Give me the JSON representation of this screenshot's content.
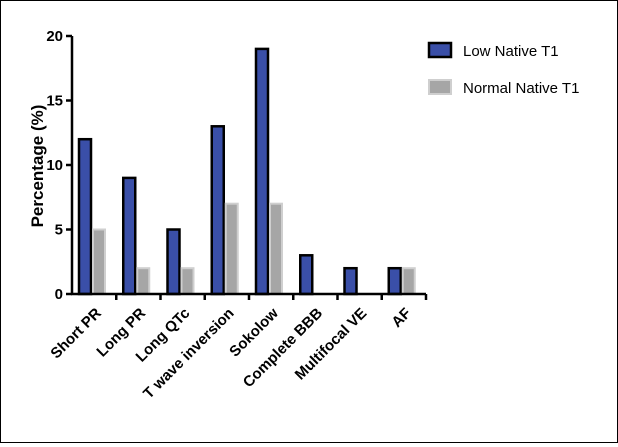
{
  "chart_data": {
    "type": "bar",
    "title": "",
    "xlabel": "",
    "ylabel": "Percentage (%)",
    "ylim": [
      0,
      20
    ],
    "yticks": [
      "0",
      "5",
      "10",
      "15",
      "20"
    ],
    "categories": [
      "Short PR",
      "Long PR",
      "Long QTc",
      "T wave inversion",
      "Sokolow",
      "Complete BBB",
      "Multifocal VE",
      "AF"
    ],
    "series": [
      {
        "name": "Low Native T1",
        "color": "#3A4FA8",
        "values": [
          12,
          9,
          5,
          13,
          19,
          3,
          2,
          2
        ]
      },
      {
        "name": "Normal Native T1",
        "color": "#A6A6A6",
        "values": [
          5,
          2,
          2,
          7,
          7,
          0,
          0,
          2
        ]
      }
    ],
    "grid": false,
    "legend_position": "top-right"
  }
}
